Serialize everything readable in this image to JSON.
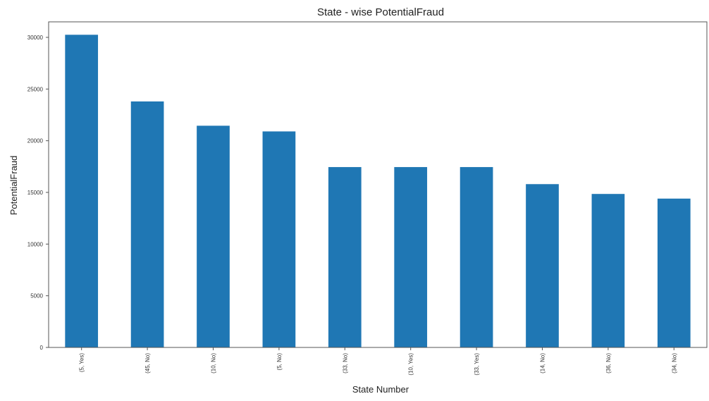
{
  "chart_data": {
    "type": "bar",
    "title": "State - wise PotentialFraud",
    "xlabel": "State Number",
    "ylabel": "PotentialFraud",
    "categories": [
      "(5, Yes)",
      "(45, No)",
      "(10, No)",
      "(5, No)",
      "(33, No)",
      "(10, Yes)",
      "(33, Yes)",
      "(14, No)",
      "(36, No)",
      "(34, No)"
    ],
    "values": [
      30250,
      23800,
      21450,
      20900,
      17450,
      17450,
      17450,
      15800,
      14850,
      14400
    ],
    "ylim": [
      0,
      31500
    ],
    "yticks": [
      0,
      5000,
      10000,
      15000,
      20000,
      25000,
      30000
    ],
    "grid": false,
    "bar_color": "#1f77b4"
  }
}
